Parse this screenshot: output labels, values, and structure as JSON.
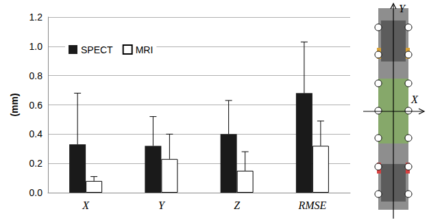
{
  "chart_data": {
    "type": "bar",
    "y_label": "(mm)",
    "categories": [
      "X",
      "Y",
      "Z",
      "RMSE"
    ],
    "series": [
      {
        "name": "SPECT",
        "color": "#1a1a1a",
        "values": [
          0.33,
          0.32,
          0.4,
          0.68
        ],
        "errors": [
          0.35,
          0.2,
          0.23,
          0.35
        ]
      },
      {
        "name": "MRI",
        "color": "#ffffff",
        "values": [
          0.08,
          0.23,
          0.15,
          0.32
        ],
        "errors": [
          0.03,
          0.17,
          0.13,
          0.17
        ]
      }
    ],
    "ylim": [
      0,
      1.2
    ],
    "yticks": [
      {
        "value": 0,
        "label": "0.0"
      },
      0.2,
      0.4,
      0.6,
      0.8,
      {
        "value": 1,
        "label": "1.0"
      },
      1.2
    ],
    "grid": true,
    "legend": "upper left",
    "annotations": [
      "X",
      "Y"
    ]
  }
}
